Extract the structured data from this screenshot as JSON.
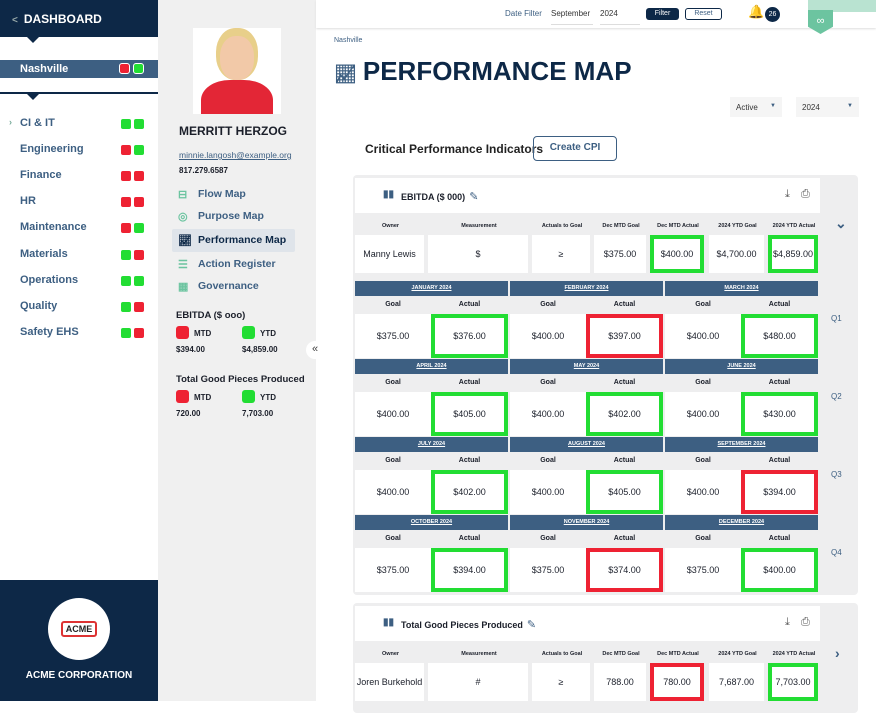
{
  "sidebar": {
    "title": "DASHBOARD",
    "site": {
      "name": "Nashville",
      "status": [
        "red",
        "green"
      ]
    },
    "items": [
      {
        "label": "CI & IT",
        "status": [
          "green",
          "green"
        ],
        "expandable": true
      },
      {
        "label": "Engineering",
        "status": [
          "red",
          "green"
        ]
      },
      {
        "label": "Finance",
        "status": [
          "red",
          "red"
        ]
      },
      {
        "label": "HR",
        "status": [
          "red",
          "red"
        ]
      },
      {
        "label": "Maintenance",
        "status": [
          "red",
          "green"
        ]
      },
      {
        "label": "Materials",
        "status": [
          "green",
          "red"
        ]
      },
      {
        "label": "Operations",
        "status": [
          "green",
          "green"
        ]
      },
      {
        "label": "Quality",
        "status": [
          "green",
          "red"
        ]
      },
      {
        "label": "Safety EHS",
        "status": [
          "green",
          "red"
        ]
      }
    ],
    "company": {
      "name": "ACME CORPORATION",
      "logo_text": "ACME"
    }
  },
  "profile": {
    "name": "MERRITT HERZOG",
    "email": "minnie.langosh@example.org",
    "phone": "817.279.6587",
    "nav": [
      {
        "label": "Flow Map",
        "icon": "flow-map-icon"
      },
      {
        "label": "Purpose Map",
        "icon": "compass-icon"
      },
      {
        "label": "Performance Map",
        "icon": "chart-line-icon",
        "active": true
      },
      {
        "label": "Action Register",
        "icon": "checklist-icon"
      },
      {
        "label": "Governance",
        "icon": "calendar-icon"
      }
    ],
    "kpis": [
      {
        "title": "EBITDA ($ ooo)",
        "mtd_label": "MTD",
        "ytd_label": "YTD",
        "mtd": "$394.00",
        "ytd": "$4,859.00",
        "mtd_status": "red",
        "ytd_status": "green"
      },
      {
        "title": "Total Good Pieces Produced",
        "mtd_label": "MTD",
        "ytd_label": "YTD",
        "mtd": "720.00",
        "ytd": "7,703.00",
        "mtd_status": "red",
        "ytd_status": "green"
      }
    ]
  },
  "topbar": {
    "date_filter_label": "Date Filter",
    "month": "September",
    "year": "2024",
    "filter": "Filter",
    "reset": "Reset",
    "notifications": "26"
  },
  "main": {
    "breadcrumb": "Nashville",
    "title": "PERFORMANCE MAP",
    "status_select": "Active",
    "year_select": "2024",
    "section": "Critical Performance Indicators",
    "create_button": "Create CPI",
    "columns": [
      "Owner",
      "Measurement",
      "Actuals to Goal",
      "Dec MTD Goal",
      "Dec MTD Actual",
      "2024 YTD Goal",
      "2024 YTD Actual"
    ],
    "goal_label": "Goal",
    "actual_label": "Actual",
    "cards": [
      {
        "name": "EBITDA ($ 000)",
        "owner": "Manny Lewis",
        "measurement": "$",
        "actuals_to_goal": "≥",
        "mtd_goal": "$375.00",
        "mtd_actual": "$400.00",
        "mtd_status": "green",
        "ytd_goal": "$4,700.00",
        "ytd_actual": "$4,859.00",
        "ytd_status": "green",
        "quarters": [
          "Q1",
          "Q2",
          "Q3",
          "Q4"
        ],
        "months": [
          {
            "month": "JANUARY 2024",
            "goal": "$375.00",
            "actual": "$376.00",
            "status": "green"
          },
          {
            "month": "FEBRUARY 2024",
            "goal": "$400.00",
            "actual": "$397.00",
            "status": "red"
          },
          {
            "month": "MARCH 2024",
            "goal": "$400.00",
            "actual": "$480.00",
            "status": "green"
          },
          {
            "month": "APRIL 2024",
            "goal": "$400.00",
            "actual": "$405.00",
            "status": "green"
          },
          {
            "month": "MAY 2024",
            "goal": "$400.00",
            "actual": "$402.00",
            "status": "green"
          },
          {
            "month": "JUNE 2024",
            "goal": "$400.00",
            "actual": "$430.00",
            "status": "green"
          },
          {
            "month": "JULY 2024",
            "goal": "$400.00",
            "actual": "$402.00",
            "status": "green"
          },
          {
            "month": "AUGUST 2024",
            "goal": "$400.00",
            "actual": "$405.00",
            "status": "green"
          },
          {
            "month": "SEPTEMBER 2024",
            "goal": "$400.00",
            "actual": "$394.00",
            "status": "red"
          },
          {
            "month": "OCTOBER 2024",
            "goal": "$375.00",
            "actual": "$394.00",
            "status": "green"
          },
          {
            "month": "NOVEMBER 2024",
            "goal": "$375.00",
            "actual": "$374.00",
            "status": "red"
          },
          {
            "month": "DECEMBER 2024",
            "goal": "$375.00",
            "actual": "$400.00",
            "status": "green"
          }
        ]
      },
      {
        "name": "Total Good Pieces Produced",
        "owner": "Joren Burkehold",
        "measurement": "#",
        "actuals_to_goal": "≥",
        "mtd_goal": "788.00",
        "mtd_actual": "780.00",
        "mtd_status": "red",
        "ytd_goal": "7,687.00",
        "ytd_actual": "7,703.00",
        "ytd_status": "green"
      }
    ]
  },
  "colors": {
    "navy": "#0d2847",
    "band": "#3d5f82",
    "green": "#22dd33",
    "red": "#ee2233",
    "teal": "#6cc4a0"
  }
}
